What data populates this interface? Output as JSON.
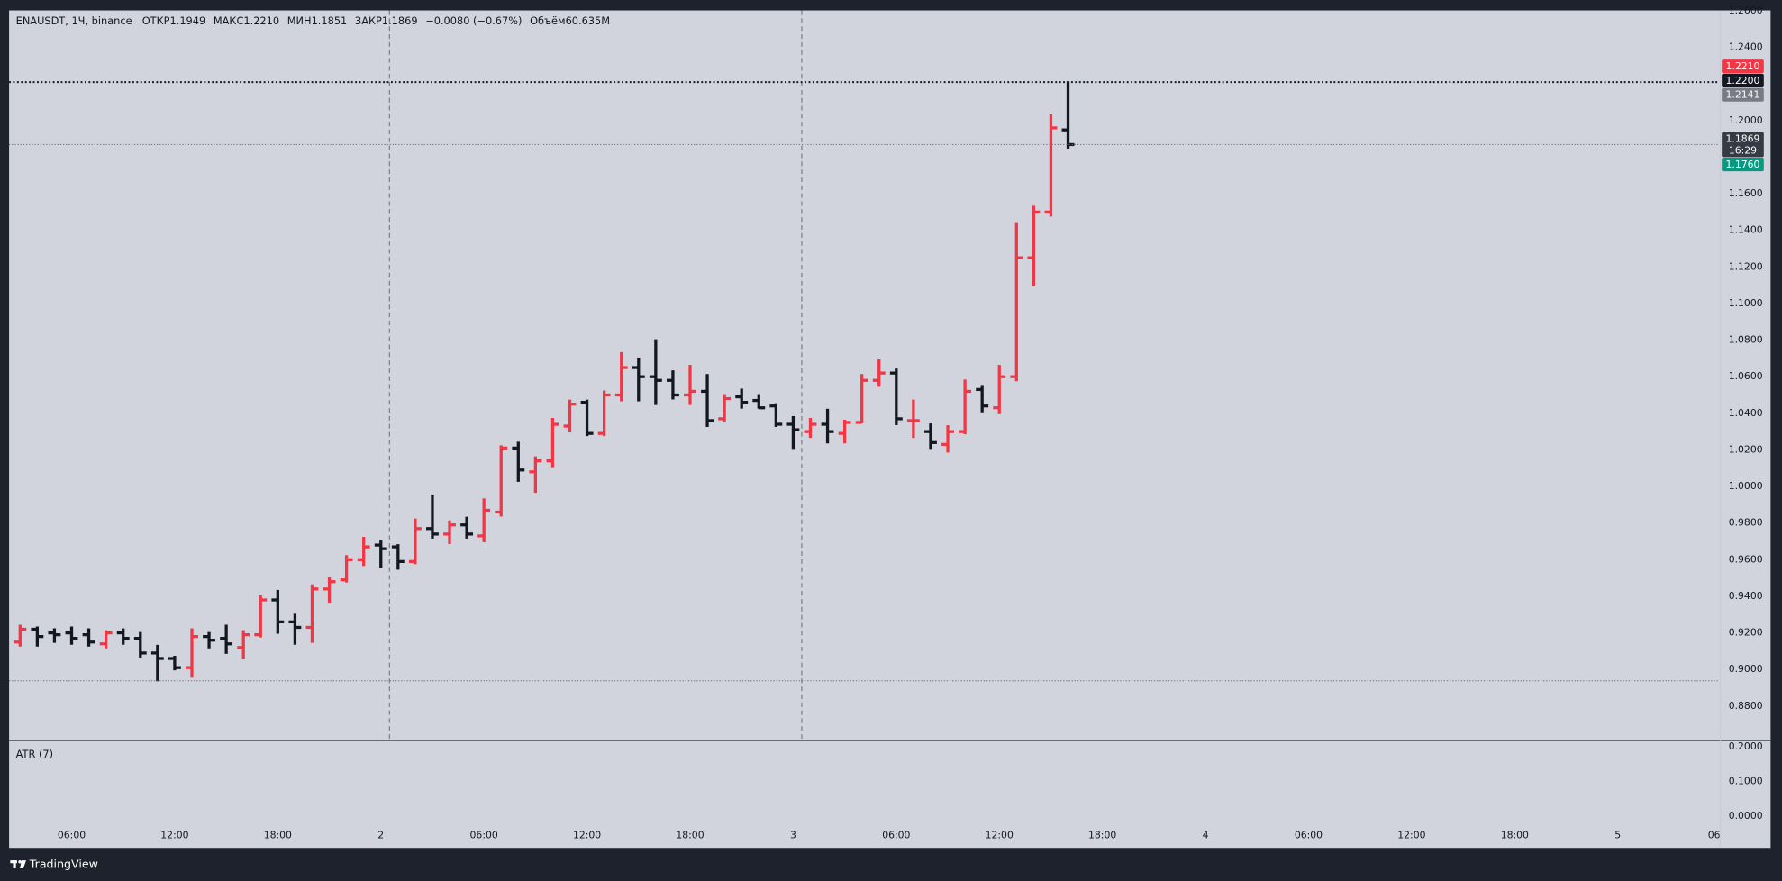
{
  "header": {
    "symbol": "ENAUSDT, 1Ч, binance",
    "fields": [
      {
        "label": "ОТКР",
        "value": "1.1949"
      },
      {
        "label": "МАКС",
        "value": "1.2210"
      },
      {
        "label": "МИН",
        "value": "1.1851"
      },
      {
        "label": "ЗАКР",
        "value": "1.1869"
      }
    ],
    "change": "−0.0080 (−0.67%)",
    "volume_label": "Объём",
    "volume": "60.635M"
  },
  "chart_data": [
    {
      "type": "ohlc",
      "up_color": "#f23645",
      "down_color": "#131722",
      "x": [
        3,
        4,
        5,
        6,
        7,
        8,
        9,
        10,
        11,
        12,
        13,
        14,
        15,
        16,
        17,
        18,
        19,
        20,
        21,
        22,
        23,
        24,
        25,
        26,
        27,
        28,
        29,
        30,
        31,
        32,
        33,
        34,
        35,
        36,
        37,
        38,
        39,
        40,
        41,
        42,
        43,
        44,
        45,
        46,
        47,
        48,
        49,
        50,
        51,
        52,
        53,
        54,
        55,
        56,
        57,
        58,
        59,
        60,
        61,
        62,
        63,
        64
      ],
      "open": [
        0.915,
        0.922,
        0.92,
        0.92,
        0.919,
        0.914,
        0.92,
        0.917,
        0.909,
        0.906,
        0.901,
        0.918,
        0.917,
        0.912,
        0.919,
        0.938,
        0.926,
        0.923,
        0.944,
        0.949,
        0.96,
        0.968,
        0.967,
        0.959,
        0.977,
        0.974,
        0.979,
        0.973,
        0.986,
        1.021,
        1.008,
        1.014,
        1.033,
        1.046,
        1.029,
        1.05,
        1.065,
        1.06,
        1.058,
        1.05,
        1.052,
        1.037,
        1.049,
        1.047,
        1.044,
        1.034,
        1.03,
        1.034,
        1.029,
        1.035,
        1.058,
        1.062,
        1.036,
        1.03,
        1.023,
        1.03,
        1.053,
        1.043,
        1.06,
        1.125,
        1.15,
        1.1949
      ],
      "high": [
        0.924,
        0.923,
        0.922,
        0.923,
        0.922,
        0.921,
        0.922,
        0.92,
        0.913,
        0.907,
        0.922,
        0.92,
        0.924,
        0.921,
        0.94,
        0.943,
        0.93,
        0.946,
        0.95,
        0.962,
        0.972,
        0.97,
        0.968,
        0.982,
        0.995,
        0.981,
        0.983,
        0.993,
        1.022,
        1.024,
        1.016,
        1.037,
        1.047,
        1.047,
        1.052,
        1.073,
        1.07,
        1.08,
        1.063,
        1.066,
        1.061,
        1.05,
        1.053,
        1.05,
        1.045,
        1.038,
        1.037,
        1.042,
        1.036,
        1.061,
        1.069,
        1.064,
        1.047,
        1.034,
        1.033,
        1.058,
        1.055,
        1.066,
        1.144,
        1.153,
        1.203,
        1.221
      ],
      "low": [
        0.913,
        0.913,
        0.915,
        0.914,
        0.913,
        0.912,
        0.914,
        0.907,
        0.894,
        0.9,
        0.896,
        0.912,
        0.909,
        0.906,
        0.918,
        0.92,
        0.914,
        0.915,
        0.937,
        0.948,
        0.957,
        0.956,
        0.955,
        0.958,
        0.972,
        0.969,
        0.972,
        0.97,
        0.984,
        1.003,
        0.997,
        1.011,
        1.03,
        1.028,
        1.028,
        1.047,
        1.047,
        1.045,
        1.048,
        1.045,
        1.033,
        1.036,
        1.043,
        1.043,
        1.033,
        1.021,
        1.027,
        1.024,
        1.024,
        1.035,
        1.055,
        1.034,
        1.027,
        1.021,
        1.019,
        1.029,
        1.041,
        1.04,
        1.058,
        1.11,
        1.148,
        1.1851
      ],
      "close": [
        0.922,
        0.918,
        0.919,
        0.917,
        0.915,
        0.92,
        0.917,
        0.909,
        0.906,
        0.901,
        0.918,
        0.916,
        0.914,
        0.919,
        0.938,
        0.926,
        0.923,
        0.944,
        0.948,
        0.96,
        0.967,
        0.966,
        0.959,
        0.977,
        0.974,
        0.979,
        0.974,
        0.987,
        1.021,
        1.009,
        1.014,
        1.034,
        1.045,
        1.029,
        1.05,
        1.065,
        1.06,
        1.058,
        1.05,
        1.052,
        1.036,
        1.048,
        1.046,
        1.043,
        1.034,
        1.031,
        1.034,
        1.03,
        1.035,
        1.058,
        1.062,
        1.037,
        1.036,
        1.024,
        1.03,
        1.052,
        1.044,
        1.06,
        1.125,
        1.15,
        1.196,
        1.1869
      ],
      "xlim": [
        2.36,
        101.92
      ],
      "ylim": [
        0.8615,
        1.2602
      ],
      "xticks": [
        {
          "value": 6,
          "label": "06:00"
        },
        {
          "value": 12,
          "label": "12:00"
        },
        {
          "value": 18,
          "label": "18:00"
        },
        {
          "value": 24,
          "label": "2"
        },
        {
          "value": 30,
          "label": "06:00"
        },
        {
          "value": 36,
          "label": "12:00"
        },
        {
          "value": 42,
          "label": "18:00"
        },
        {
          "value": 48,
          "label": "3"
        },
        {
          "value": 54,
          "label": "06:00"
        },
        {
          "value": 60,
          "label": "12:00"
        },
        {
          "value": 66,
          "label": "18:00"
        },
        {
          "value": 72,
          "label": "4"
        },
        {
          "value": 78,
          "label": "06:00"
        },
        {
          "value": 84,
          "label": "12:00"
        },
        {
          "value": 90,
          "label": "18:00"
        },
        {
          "value": 96,
          "label": "5"
        },
        {
          "value": 101.7,
          "label": "06:"
        }
      ],
      "yticks": [
        {
          "value": 0.88,
          "label": "0.8800"
        },
        {
          "value": 0.9,
          "label": "0.9000"
        },
        {
          "value": 0.92,
          "label": "0.9200"
        },
        {
          "value": 0.94,
          "label": "0.9400"
        },
        {
          "value": 0.96,
          "label": "0.9600"
        },
        {
          "value": 0.98,
          "label": "0.9800"
        },
        {
          "value": 1.0,
          "label": "1.0000"
        },
        {
          "value": 1.02,
          "label": "1.0200"
        },
        {
          "value": 1.04,
          "label": "1.0400"
        },
        {
          "value": 1.06,
          "label": "1.0600"
        },
        {
          "value": 1.08,
          "label": "1.0800"
        },
        {
          "value": 1.1,
          "label": "1.1000"
        },
        {
          "value": 1.12,
          "label": "1.1200"
        },
        {
          "value": 1.14,
          "label": "1.1400"
        },
        {
          "value": 1.16,
          "label": "1.1600"
        },
        {
          "value": 1.2,
          "label": "1.2000"
        },
        {
          "value": 1.24,
          "label": "1.2400"
        },
        {
          "value": 1.26,
          "label": "1.2600"
        }
      ],
      "hlines": [
        {
          "value": 1.221,
          "color": "#131722",
          "width": 1.6,
          "dash": "1.5 2"
        },
        {
          "value": 1.1869,
          "color": "#6a6d78",
          "width": 0.8,
          "dash": "1 1.5"
        },
        {
          "value": 0.8938,
          "color": "#6a6d78",
          "width": 0.8,
          "dash": "1 1.5"
        }
      ],
      "vlines": [
        24.5,
        48.5
      ],
      "price_labels": [
        {
          "value": 1.221,
          "label": "1.2210",
          "color": "#f23645"
        },
        {
          "value": 1.22,
          "label": "1.2200",
          "color": "#131722"
        },
        {
          "value": 1.2141,
          "label": "1.2141",
          "color": "#787b86"
        },
        {
          "value": 1.1869,
          "label": "1.1869",
          "color": "#363a45",
          "countdown": "16:29"
        },
        {
          "value": 1.176,
          "label": "1.1760",
          "color": "#089981"
        }
      ]
    },
    {
      "type": "indicator",
      "title": "ATR (7)",
      "ylim": [
        -0.0197,
        0.2164
      ],
      "yticks": [
        {
          "value": 0.2,
          "label": "0.2000"
        },
        {
          "value": 0.1,
          "label": "0.1000"
        },
        {
          "value": 0,
          "label": "0.0000"
        }
      ]
    }
  ],
  "footer": {
    "brand": "TradingView"
  }
}
